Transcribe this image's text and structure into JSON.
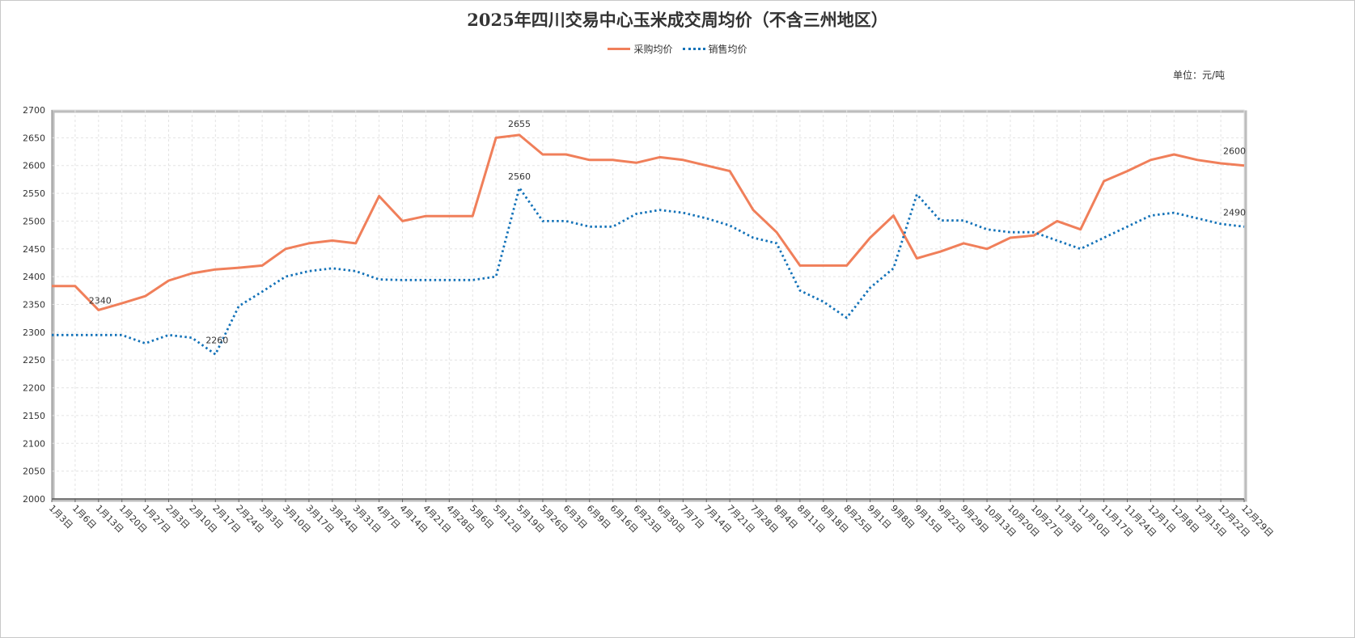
{
  "title": "2025年四川交易中心玉米成交周均价（不含三州地区）",
  "unit": "单位：元/吨",
  "chart_data": {
    "type": "line",
    "title": "2025年四川交易中心玉米成交周均价（不含三州地区）",
    "ylim": [
      2000,
      2700
    ],
    "yticks": [
      2000,
      2050,
      2100,
      2150,
      2200,
      2250,
      2300,
      2350,
      2400,
      2450,
      2500,
      2550,
      2600,
      2650,
      2700
    ],
    "grid": true,
    "legend_position": "top-center",
    "x": [
      "1月3日",
      "1月6日",
      "1月13日",
      "1月20日",
      "1月27日",
      "2月3日",
      "2月10日",
      "2月17日",
      "2月24日",
      "3月3日",
      "3月10日",
      "3月17日",
      "3月24日",
      "3月31日",
      "4月7日",
      "4月14日",
      "4月21日",
      "4月28日",
      "5月6日",
      "5月12日",
      "5月19日",
      "5月26日",
      "6月3日",
      "6月9日",
      "6月16日",
      "6月23日",
      "6月30日",
      "7月7日",
      "7月14日",
      "7月21日",
      "7月28日",
      "8月4日",
      "8月11日",
      "8月18日",
      "8月25日",
      "9月1日",
      "9月8日",
      "9月15日",
      "9月22日",
      "9月29日",
      "10月13日",
      "10月20日",
      "10月27日",
      "11月3日",
      "11月10日",
      "11月17日",
      "11月24日",
      "12月1日",
      "12月8日",
      "12月15日",
      "12月22日",
      "12月29日"
    ],
    "series": [
      {
        "name": "采购均价",
        "color": "#f07f5a",
        "style": "solid",
        "values": [
          2383,
          2383,
          2340,
          2352,
          2365,
          2393,
          2406,
          2413,
          2416,
          2420,
          2450,
          2460,
          2465,
          2460,
          2545,
          2500,
          2509,
          2509,
          2509,
          2650,
          2655,
          2620,
          2620,
          2610,
          2610,
          2605,
          2615,
          2610,
          2600,
          2590,
          2520,
          2480,
          2420,
          2420,
          2420,
          2470,
          2510,
          2433,
          2445,
          2460,
          2450,
          2470,
          2474,
          2500,
          2485,
          2572,
          2590,
          2610,
          2620,
          2610,
          2604,
          2600
        ]
      },
      {
        "name": "销售均价",
        "color": "#1372b8",
        "style": "dotted",
        "values": [
          2295,
          2295,
          2295,
          2295,
          2280,
          2295,
          2290,
          2260,
          2347,
          2373,
          2400,
          2410,
          2415,
          2410,
          2395,
          2394,
          2394,
          2394,
          2394,
          2400,
          2560,
          2500,
          2500,
          2490,
          2490,
          2513,
          2520,
          2515,
          2505,
          2492,
          2470,
          2460,
          2375,
          2355,
          2326,
          2380,
          2415,
          2548,
          2501,
          2501,
          2485,
          2480,
          2480,
          2465,
          2450,
          2470,
          2490,
          2510,
          2515,
          2505,
          2495,
          2490
        ]
      }
    ],
    "annotations": [
      {
        "series": 0,
        "index": 2,
        "label": "2340"
      },
      {
        "series": 1,
        "index": 7,
        "label": "2260"
      },
      {
        "series": 0,
        "index": 20,
        "label": "2655"
      },
      {
        "series": 1,
        "index": 20,
        "label": "2560"
      },
      {
        "series": 0,
        "index": 51,
        "label": "2600"
      },
      {
        "series": 1,
        "index": 51,
        "label": "2490"
      }
    ]
  }
}
